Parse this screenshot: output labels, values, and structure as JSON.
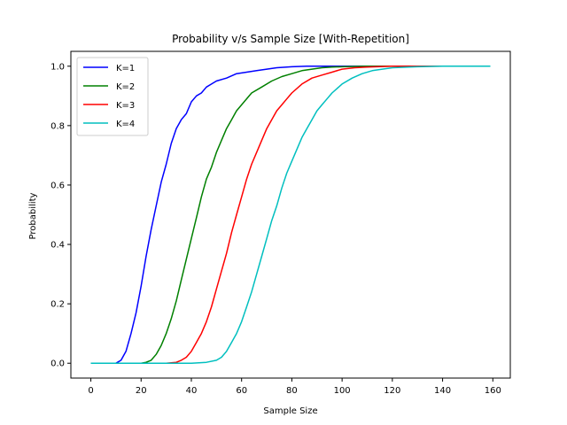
{
  "chart_data": {
    "type": "line",
    "title": "Probability v/s Sample Size [With-Repetition]",
    "xlabel": "Sample Size",
    "ylabel": "Probability",
    "xlim": [
      -7.95,
      166.95
    ],
    "ylim": [
      -0.05,
      1.05
    ],
    "xticks": [
      0,
      20,
      40,
      60,
      80,
      100,
      120,
      140,
      160
    ],
    "yticks": [
      0.0,
      0.2,
      0.4,
      0.6,
      0.8,
      1.0
    ],
    "ytick_labels": [
      "0.0",
      "0.2",
      "0.4",
      "0.6",
      "0.8",
      "1.0"
    ],
    "grid": false,
    "legend_position": "top-left",
    "series": [
      {
        "name": "K=1",
        "color": "#0000ff",
        "x": [
          0,
          10,
          12,
          14,
          16,
          18,
          20,
          22,
          24,
          26,
          28,
          30,
          32,
          34,
          36,
          38,
          40,
          42,
          44,
          46,
          48,
          50,
          54,
          58,
          62,
          66,
          70,
          74,
          80,
          86,
          90,
          95,
          100,
          110,
          120,
          130,
          140,
          150,
          159
        ],
        "y": [
          0.0,
          0.0,
          0.01,
          0.04,
          0.1,
          0.17,
          0.26,
          0.36,
          0.45,
          0.53,
          0.61,
          0.67,
          0.74,
          0.79,
          0.82,
          0.84,
          0.88,
          0.9,
          0.91,
          0.93,
          0.94,
          0.95,
          0.96,
          0.975,
          0.98,
          0.985,
          0.99,
          0.995,
          0.998,
          1.0,
          1.0,
          1.0,
          1.0,
          1.0,
          1.0,
          1.0,
          1.0,
          1.0,
          1.0
        ]
      },
      {
        "name": "K=2",
        "color": "#008000",
        "x": [
          0,
          20,
          22,
          24,
          26,
          28,
          30,
          32,
          34,
          36,
          38,
          40,
          42,
          44,
          46,
          48,
          50,
          52,
          54,
          56,
          58,
          60,
          64,
          68,
          72,
          76,
          80,
          84,
          88,
          92,
          96,
          100,
          110,
          120,
          130,
          140,
          150,
          159
        ],
        "y": [
          0.0,
          0.0,
          0.003,
          0.01,
          0.03,
          0.06,
          0.1,
          0.15,
          0.21,
          0.28,
          0.35,
          0.42,
          0.49,
          0.56,
          0.62,
          0.66,
          0.71,
          0.75,
          0.79,
          0.82,
          0.85,
          0.87,
          0.91,
          0.93,
          0.95,
          0.965,
          0.975,
          0.985,
          0.99,
          0.995,
          0.997,
          0.998,
          1.0,
          1.0,
          1.0,
          1.0,
          1.0,
          1.0
        ]
      },
      {
        "name": "K=3",
        "color": "#ff0000",
        "x": [
          0,
          30,
          34,
          36,
          38,
          40,
          42,
          44,
          46,
          48,
          50,
          52,
          54,
          56,
          58,
          60,
          62,
          64,
          66,
          68,
          70,
          72,
          74,
          76,
          78,
          80,
          84,
          88,
          92,
          96,
          100,
          105,
          110,
          120,
          130,
          140,
          150,
          159
        ],
        "y": [
          0.0,
          0.0,
          0.003,
          0.01,
          0.02,
          0.04,
          0.07,
          0.1,
          0.14,
          0.19,
          0.25,
          0.31,
          0.37,
          0.44,
          0.5,
          0.56,
          0.62,
          0.67,
          0.71,
          0.75,
          0.79,
          0.82,
          0.85,
          0.87,
          0.89,
          0.91,
          0.94,
          0.96,
          0.97,
          0.98,
          0.99,
          0.995,
          0.997,
          1.0,
          1.0,
          1.0,
          1.0,
          1.0
        ]
      },
      {
        "name": "K=4",
        "color": "#00bfbf",
        "x": [
          0,
          40,
          46,
          50,
          52,
          54,
          56,
          58,
          60,
          62,
          64,
          66,
          68,
          70,
          72,
          74,
          76,
          78,
          80,
          82,
          84,
          86,
          88,
          90,
          92,
          94,
          96,
          98,
          100,
          104,
          108,
          112,
          116,
          120,
          130,
          140,
          150,
          159
        ],
        "y": [
          0.0,
          0.0,
          0.003,
          0.01,
          0.02,
          0.04,
          0.07,
          0.1,
          0.14,
          0.19,
          0.24,
          0.3,
          0.36,
          0.42,
          0.48,
          0.53,
          0.59,
          0.64,
          0.68,
          0.72,
          0.76,
          0.79,
          0.82,
          0.85,
          0.87,
          0.89,
          0.91,
          0.925,
          0.94,
          0.96,
          0.975,
          0.985,
          0.99,
          0.995,
          0.998,
          1.0,
          1.0,
          1.0
        ]
      }
    ]
  }
}
